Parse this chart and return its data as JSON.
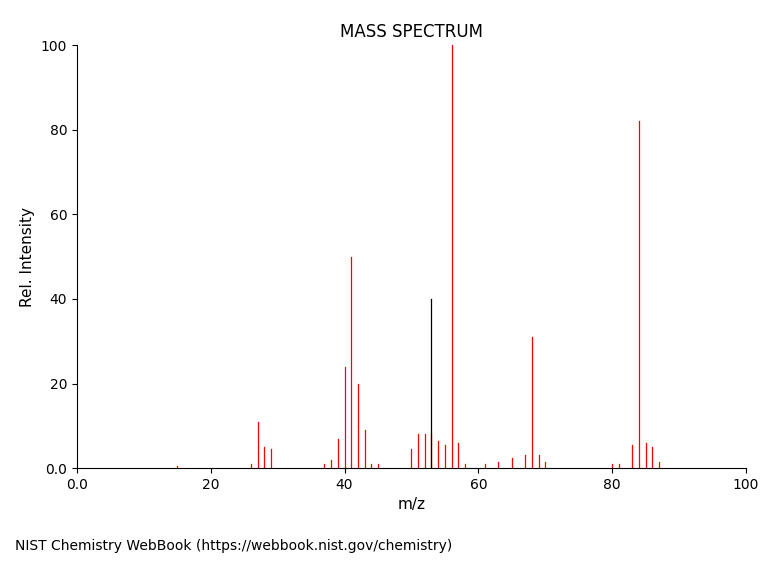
{
  "title": "MASS SPECTRUM",
  "xlabel": "m/z",
  "ylabel": "Rel. Intensity",
  "xlim": [
    0.0,
    100
  ],
  "ylim": [
    0.0,
    100
  ],
  "xticks": [
    0.0,
    20,
    40,
    60,
    80,
    100
  ],
  "yticks": [
    0.0,
    20,
    40,
    60,
    80,
    100
  ],
  "xticklabels": [
    "0.0",
    "20",
    "40",
    "60",
    "80",
    "100"
  ],
  "yticklabels": [
    "0.0",
    "20",
    "40",
    "60",
    "80",
    "100"
  ],
  "footer": "NIST Chemistry WebBook (https://webbook.nist.gov/chemistry)",
  "red_peaks": [
    [
      15,
      0.5
    ],
    [
      26,
      1.0
    ],
    [
      27,
      11.0
    ],
    [
      28,
      5.0
    ],
    [
      29,
      4.5
    ],
    [
      37,
      1.0
    ],
    [
      38,
      2.0
    ],
    [
      39,
      7.0
    ],
    [
      40,
      24.0
    ],
    [
      41,
      50.0
    ],
    [
      42,
      20.0
    ],
    [
      43,
      9.0
    ],
    [
      44,
      1.0
    ],
    [
      45,
      1.0
    ],
    [
      50,
      4.5
    ],
    [
      51,
      8.0
    ],
    [
      52,
      8.0
    ],
    [
      53,
      8.0
    ],
    [
      54,
      6.5
    ],
    [
      55,
      5.5
    ],
    [
      56,
      100.0
    ],
    [
      57,
      6.0
    ],
    [
      58,
      1.0
    ],
    [
      61,
      1.0
    ],
    [
      63,
      1.5
    ],
    [
      65,
      2.5
    ],
    [
      67,
      3.0
    ],
    [
      68,
      31.0
    ],
    [
      69,
      3.0
    ],
    [
      70,
      1.5
    ],
    [
      80,
      1.0
    ],
    [
      81,
      1.0
    ],
    [
      83,
      5.5
    ],
    [
      84,
      82.0
    ],
    [
      85,
      6.0
    ],
    [
      86,
      5.0
    ],
    [
      87,
      1.5
    ]
  ],
  "black_peaks": [
    [
      53,
      40.0
    ]
  ],
  "line_color_red": "#ff0000",
  "line_color_black": "#000000",
  "background_color": "#ffffff",
  "title_fontsize": 12,
  "axis_label_fontsize": 11,
  "tick_fontsize": 10,
  "footer_fontsize": 10
}
